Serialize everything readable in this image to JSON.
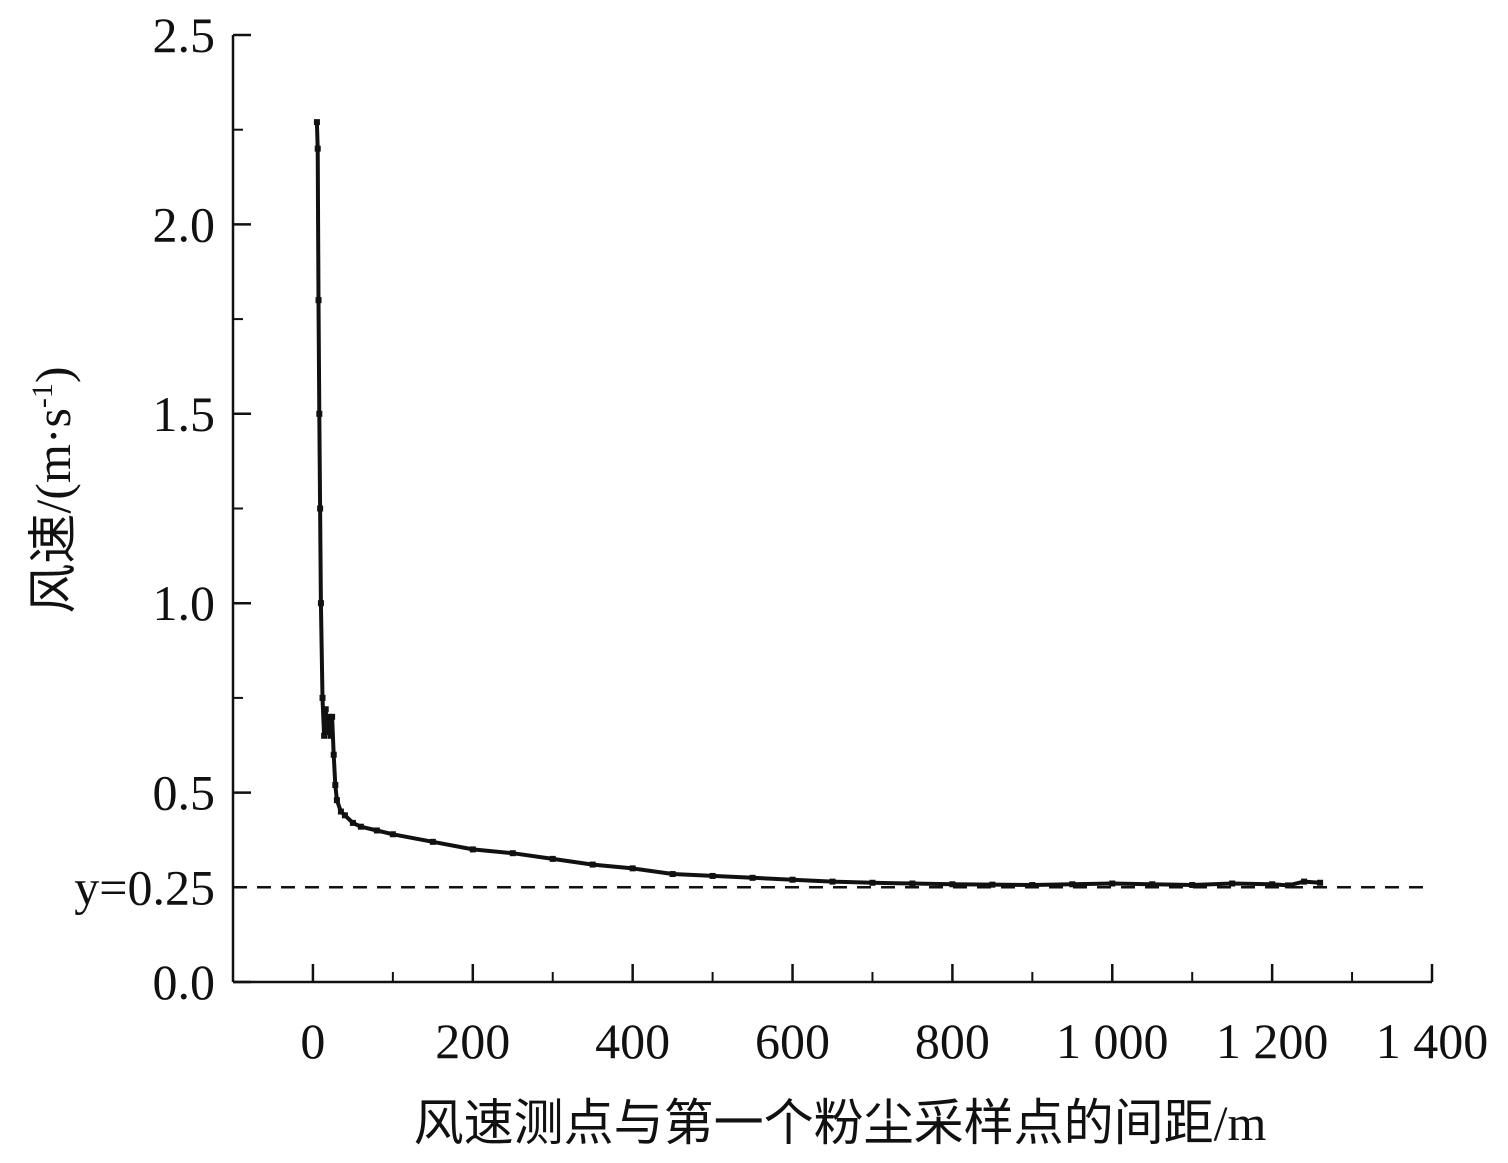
{
  "chart_data": {
    "type": "line",
    "xlabel": "风速测点与第一个粉尘采样点的间距/m",
    "ylabel": "风速/(m·s",
    "ylabel_sup": "-1",
    "ylabel_close": ")",
    "xlim": [
      -100,
      1400
    ],
    "ylim": [
      0,
      2.5
    ],
    "x_ticks": [
      0,
      200,
      400,
      600,
      800,
      1000,
      1200,
      1400
    ],
    "x_tick_labels": [
      "0",
      "200",
      "400",
      "600",
      "800",
      "1 000",
      "1 200",
      "1 400"
    ],
    "y_ticks": [
      0.0,
      0.5,
      1.0,
      1.5,
      2.0,
      2.5
    ],
    "y_tick_labels": [
      "0.0",
      "0.5",
      "1.0",
      "1.5",
      "2.0",
      "2.5"
    ],
    "reference_line": {
      "y": 0.25,
      "label": "y=0.25",
      "style": "dashed"
    },
    "grid": false,
    "series": [
      {
        "x": [
          5,
          6,
          7,
          8,
          9,
          10,
          12,
          14,
          16,
          18,
          20,
          22,
          24,
          26,
          28,
          30,
          35,
          40,
          50,
          60,
          80,
          100,
          150,
          200,
          250,
          300,
          350,
          400,
          450,
          500,
          550,
          600,
          650,
          700,
          750,
          800,
          850,
          900,
          950,
          1000,
          1050,
          1100,
          1150,
          1200,
          1220,
          1240,
          1260
        ],
        "y": [
          2.27,
          2.2,
          1.8,
          1.5,
          1.25,
          1.0,
          0.75,
          0.65,
          0.72,
          0.66,
          0.7,
          0.65,
          0.7,
          0.6,
          0.52,
          0.48,
          0.45,
          0.44,
          0.42,
          0.41,
          0.4,
          0.39,
          0.37,
          0.35,
          0.34,
          0.325,
          0.31,
          0.3,
          0.285,
          0.28,
          0.275,
          0.27,
          0.265,
          0.262,
          0.26,
          0.258,
          0.257,
          0.256,
          0.258,
          0.26,
          0.258,
          0.256,
          0.26,
          0.258,
          0.255,
          0.265,
          0.262
        ]
      }
    ]
  }
}
